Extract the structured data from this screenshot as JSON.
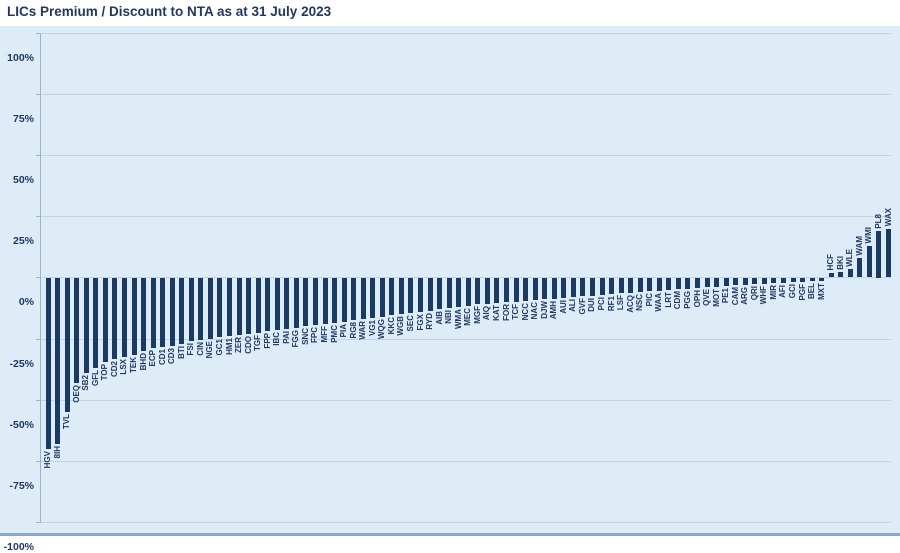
{
  "title": "LICs Premium / Discount to NTA as at 31 July 2023",
  "colors": {
    "title_text": "#1f3864",
    "bar": "#1a3a66",
    "plot_background": "#ddecf7",
    "gridline": "#c2d3e2",
    "axis_line": "#9db3c6",
    "bottom_strip": "#8aa9c9"
  },
  "chart_data": {
    "type": "bar",
    "title": "LICs Premium / Discount to NTA as at 31 July 2023",
    "xlabel": "",
    "ylabel": "",
    "ylim": [
      -100,
      100
    ],
    "ytick_step": 25,
    "ytick_labels": [
      "100%",
      "75%",
      "50%",
      "25%",
      "0%",
      "-25%",
      "-50%",
      "-75%",
      "-100%"
    ],
    "grid": true,
    "legend_position": "none",
    "bar_label_rotation": 90,
    "categories": [
      "HGV",
      "8IH",
      "TVL",
      "OEQ",
      "SB2",
      "GFL",
      "TOP",
      "CD2",
      "LSX",
      "TEK",
      "BHD",
      "ECP",
      "CD1",
      "CD3",
      "BTI",
      "FSI",
      "CIN",
      "NGE",
      "GC1",
      "HM1",
      "ZER",
      "CDO",
      "TGF",
      "FPP",
      "IBC",
      "PAI",
      "FGG",
      "SNC",
      "FPC",
      "MFF",
      "PMC",
      "PIA",
      "RG8",
      "WAR",
      "VG1",
      "WQG",
      "KKC",
      "WGB",
      "SEC",
      "FGX",
      "RYD",
      "AIB",
      "NBI",
      "WMA",
      "MEC",
      "MGF",
      "AIQ",
      "KAT",
      "FOR",
      "TCF",
      "NCC",
      "NAC",
      "DJW",
      "AMH",
      "AUI",
      "ALI",
      "GVF",
      "DUI",
      "PCI",
      "RF1",
      "LSF",
      "ACQ",
      "NSC",
      "PIC",
      "WAA",
      "LRT",
      "CDM",
      "PGG",
      "OPH",
      "QVE",
      "MOT",
      "PE1",
      "CAM",
      "ARG",
      "QRI",
      "WHF",
      "MIR",
      "AFI",
      "GCI",
      "PGF",
      "BEL",
      "MXT",
      "HCF",
      "BKI",
      "WLE",
      "WAM",
      "WMI",
      "PL8",
      "WAX"
    ],
    "values": [
      -70,
      -68,
      -55,
      -43,
      -39,
      -37,
      -34.5,
      -33.5,
      -32.5,
      -31.5,
      -30,
      -29,
      -28.5,
      -28,
      -27,
      -26,
      -25.5,
      -25,
      -24.5,
      -24,
      -23.5,
      -23,
      -22.5,
      -22,
      -21.5,
      -21,
      -20.5,
      -20,
      -19.5,
      -19,
      -18.5,
      -18,
      -17.5,
      -17,
      -16.5,
      -16,
      -15.5,
      -15,
      -14.5,
      -14,
      -13.5,
      -13,
      -12.5,
      -12,
      -11.5,
      -11,
      -10.7,
      -10.4,
      -10.1,
      -9.8,
      -9.5,
      -9.2,
      -8.9,
      -8.6,
      -8.3,
      -8,
      -7.7,
      -7.4,
      -7.1,
      -6.8,
      -6.5,
      -6.2,
      -6,
      -5.7,
      -5.4,
      -5.1,
      -4.8,
      -4.6,
      -4.3,
      -4,
      -3.8,
      -3.5,
      -3.2,
      -3,
      -2.8,
      -2.6,
      -2.4,
      -2.2,
      -2,
      -1.8,
      -1.6,
      -1.4,
      2,
      2.3,
      3.5,
      8,
      13,
      19,
      20
    ]
  }
}
